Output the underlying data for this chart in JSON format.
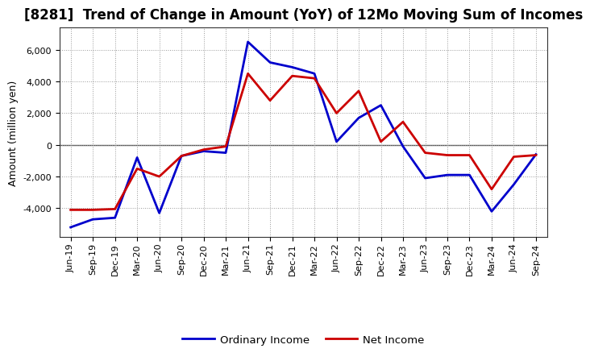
{
  "title": "[8281]  Trend of Change in Amount (YoY) of 12Mo Moving Sum of Incomes",
  "ylabel": "Amount (million yen)",
  "x_labels": [
    "Jun-19",
    "Sep-19",
    "Dec-19",
    "Mar-20",
    "Jun-20",
    "Sep-20",
    "Dec-20",
    "Mar-21",
    "Jun-21",
    "Sep-21",
    "Dec-21",
    "Mar-22",
    "Jun-22",
    "Sep-22",
    "Dec-22",
    "Mar-23",
    "Jun-23",
    "Sep-23",
    "Dec-23",
    "Mar-24",
    "Jun-24",
    "Sep-24"
  ],
  "ordinary_income": [
    -5200,
    -4700,
    -4600,
    -800,
    -4300,
    -700,
    -400,
    -500,
    6500,
    5200,
    4900,
    4500,
    200,
    1700,
    2500,
    -100,
    -2100,
    -1900,
    -1900,
    -4200,
    -2500,
    -600
  ],
  "net_income": [
    -4100,
    -4100,
    -4050,
    -1500,
    -2000,
    -700,
    -300,
    -100,
    4500,
    2800,
    4350,
    4200,
    2000,
    3400,
    200,
    1450,
    -500,
    -650,
    -650,
    -2800,
    -750,
    -650
  ],
  "ordinary_color": "#0000cc",
  "net_color": "#cc0000",
  "bg_color": "#ffffff",
  "ylim": [
    -5800,
    7400
  ],
  "yticks": [
    -4000,
    -2000,
    0,
    2000,
    4000,
    6000
  ],
  "grid_color": "#999999",
  "zero_line_color": "#555555",
  "title_fontsize": 12,
  "label_fontsize": 9,
  "tick_fontsize": 8,
  "legend_fontsize": 9.5,
  "line_width": 2.0
}
